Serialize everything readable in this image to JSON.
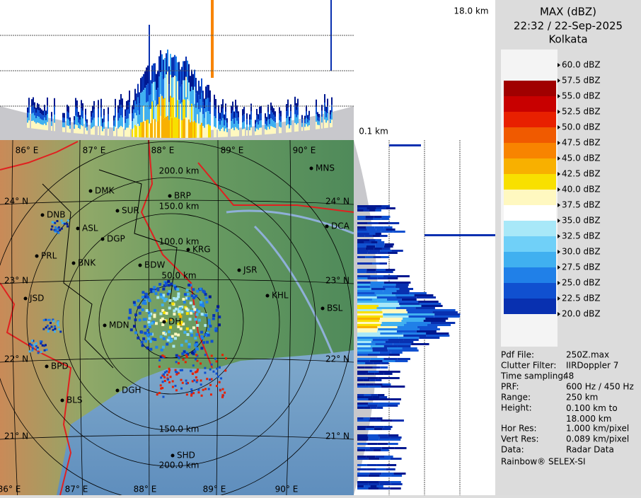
{
  "header": {
    "title": "MAX (dBZ)",
    "time": "22:32 / 22-Sep-2025",
    "station": "Kolkata"
  },
  "panels": {
    "top_height_label": "18.0 km",
    "side_height_label": "0.1 km"
  },
  "legend": [
    {
      "label": "60.0 dBZ"
    },
    {
      "label": "57.5 dBZ",
      "color": "#a00000"
    },
    {
      "label": "55.0 dBZ",
      "color": "#c80000"
    },
    {
      "label": "52.5 dBZ",
      "color": "#e82000"
    },
    {
      "label": "50.0 dBZ",
      "color": "#f05a00"
    },
    {
      "label": "47.5 dBZ",
      "color": "#f88400"
    },
    {
      "label": "45.0 dBZ",
      "color": "#f8b000"
    },
    {
      "label": "42.5 dBZ",
      "color": "#f8e000"
    },
    {
      "label": "40.0 dBZ",
      "color": "#fff8c0"
    },
    {
      "label": "37.5 dBZ",
      "color": "#ffffff"
    },
    {
      "label": "35.0 dBZ",
      "color": "#a8e8f8"
    },
    {
      "label": "32.5 dBZ",
      "color": "#70d0f8"
    },
    {
      "label": "30.0 dBZ",
      "color": "#40b0f0"
    },
    {
      "label": "27.5 dBZ",
      "color": "#2080e8"
    },
    {
      "label": "25.0 dBZ",
      "color": "#1050d0"
    },
    {
      "label": "22.5 dBZ",
      "color": "#0830b0"
    },
    {
      "label": "20.0 dBZ"
    }
  ],
  "info": [
    {
      "label": "Pdf File:",
      "value": "250Z.max"
    },
    {
      "label": "Clutter Filter:",
      "value": "IIRDoppler 7"
    },
    {
      "label": "Time sampling:",
      "value": "48"
    },
    {
      "label": "PRF:",
      "value": "600 Hz / 450 Hz"
    },
    {
      "label": "Range:",
      "value": "250 km"
    },
    {
      "label": "Height:",
      "value": "0.100 km to 18.000 km"
    },
    {
      "label": "Hor Res:",
      "value": "1.000 km/pixel"
    },
    {
      "label": "Vert Res:",
      "value": "0.089 km/pixel"
    },
    {
      "label": "Data:",
      "value": "Radar Data"
    }
  ],
  "footer": "Rainbow® SELEX-SI",
  "map": {
    "lon_labels": [
      "86° E",
      "87° E",
      "88° E",
      "89° E",
      "90° E"
    ],
    "lat_labels": [
      "24° N",
      "23° N",
      "22° N",
      "21° N"
    ],
    "ring_labels_top": [
      "200.0 km",
      "150.0 km",
      "100.0 km",
      "50.0 km"
    ],
    "ring_labels_bottom": [
      "150.0 km",
      "200.0 km"
    ],
    "cities": [
      "MNS",
      "DMK",
      "BRP",
      "SUR",
      "DNB",
      "ASL",
      "DGP",
      "DCA",
      "KRG",
      "PRL",
      "BNK",
      "BDW",
      "JSR",
      "JSD",
      "KHL",
      "BSL",
      "MDN",
      "DH",
      "BPD",
      "DGH",
      "BLS",
      "SHD"
    ]
  }
}
